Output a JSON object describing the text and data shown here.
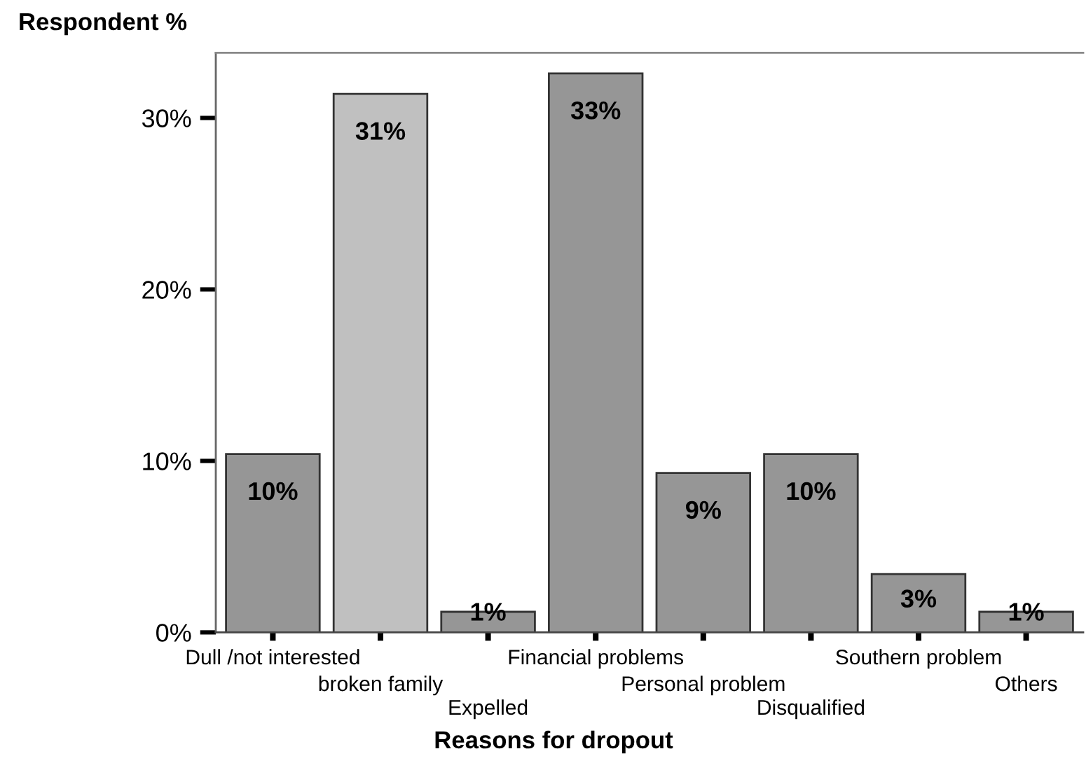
{
  "chart_data": {
    "type": "bar",
    "ylabel": "Respondent %",
    "xlabel": "Reasons for dropout",
    "categories": [
      "Dull /not interested",
      "broken family",
      "Expelled",
      "Financial problems",
      "Personal problem",
      "Disqualified",
      "Southern problem",
      "Others"
    ],
    "values": [
      10.4,
      31.4,
      1.2,
      32.6,
      9.3,
      10.4,
      3.4,
      1.2
    ],
    "value_labels": [
      "10%",
      "31%",
      "1%",
      "33%",
      "9%",
      "10%",
      "3%",
      "1%"
    ],
    "colors": [
      "#969696",
      "#c0c0c0",
      "#969696",
      "#969696",
      "#969696",
      "#969696",
      "#969696",
      "#969696"
    ],
    "ylim": [
      0,
      33.8
    ],
    "yticks": [
      {
        "value": 0,
        "label": "0%"
      },
      {
        "value": 10,
        "label": "10%"
      },
      {
        "value": 20,
        "label": "20%"
      },
      {
        "value": 30,
        "label": "30%"
      }
    ]
  }
}
